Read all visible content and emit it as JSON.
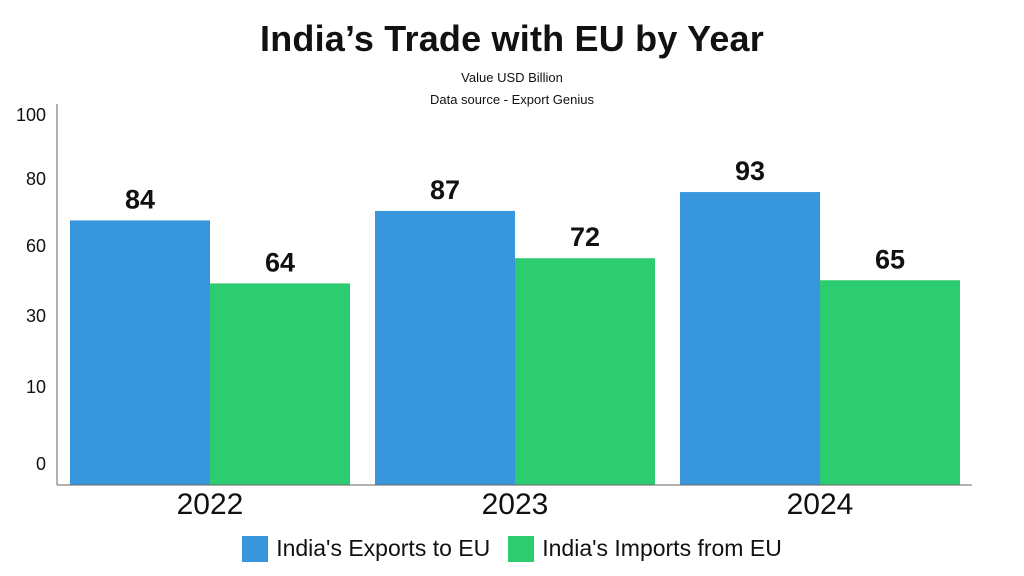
{
  "chart_data": {
    "type": "bar",
    "title": "India’s Trade with EU by Year",
    "subtitle_lines": [
      "Value USD Billion",
      "Data source - Export Genius"
    ],
    "categories": [
      "2022",
      "2023",
      "2024"
    ],
    "series": [
      {
        "name": "India's Exports to EU",
        "color": "#3897dc",
        "values": [
          84,
          87,
          93
        ]
      },
      {
        "name": "India's Imports from EU",
        "color": "#2ecc71",
        "values": [
          64,
          72,
          65
        ]
      }
    ],
    "y_ticks": [
      "0",
      "10",
      "30",
      "60",
      "80",
      "100"
    ],
    "ylim": [
      0,
      100
    ],
    "grid": false,
    "legend_position": "bottom"
  }
}
